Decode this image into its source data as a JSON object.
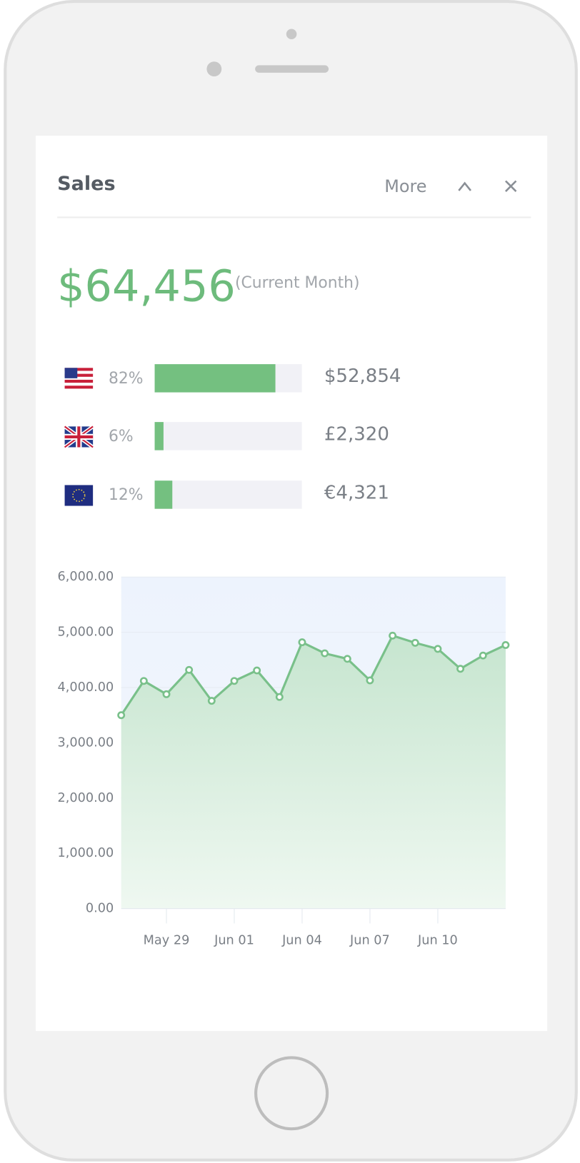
{
  "header": {
    "title": "Sales",
    "more": "More"
  },
  "total": {
    "amount": "$64,456",
    "period": "(Current Month)"
  },
  "breakdown": {
    "color": "#74c080",
    "rows": [
      {
        "percent": 82,
        "percent_label": "82%",
        "amount": "$52,854"
      },
      {
        "percent": 6,
        "percent_label": "6%",
        "amount": "£2,320"
      },
      {
        "percent": 12,
        "percent_label": "12%",
        "amount": "€4,321"
      }
    ]
  },
  "chart_data": {
    "type": "line",
    "categories": [
      null,
      null,
      "May 29",
      null,
      null,
      "Jun 01",
      null,
      null,
      "Jun 04",
      null,
      null,
      "Jun 07",
      null,
      null,
      "Jun 10",
      null,
      null,
      null
    ],
    "series": [
      {
        "color": "#79c08a",
        "values": [
          3500,
          4120,
          3880,
          4320,
          3760,
          4120,
          4310,
          3830,
          4820,
          4620,
          4520,
          4130,
          4940,
          4810,
          4700,
          4340,
          4580,
          4770
        ]
      }
    ],
    "ylim": [
      0,
      6000
    ],
    "yticks": [
      {
        "value": 0,
        "label": "0.00"
      },
      {
        "value": 1000,
        "label": "1,000.00"
      },
      {
        "value": 2000,
        "label": "2,000.00"
      },
      {
        "value": 3000,
        "label": "3,000.00"
      },
      {
        "value": 4000,
        "label": "4,000.00"
      },
      {
        "value": 5000,
        "label": "5,000.00"
      },
      {
        "value": 6000,
        "label": "6,000.00"
      }
    ],
    "grid": true
  }
}
